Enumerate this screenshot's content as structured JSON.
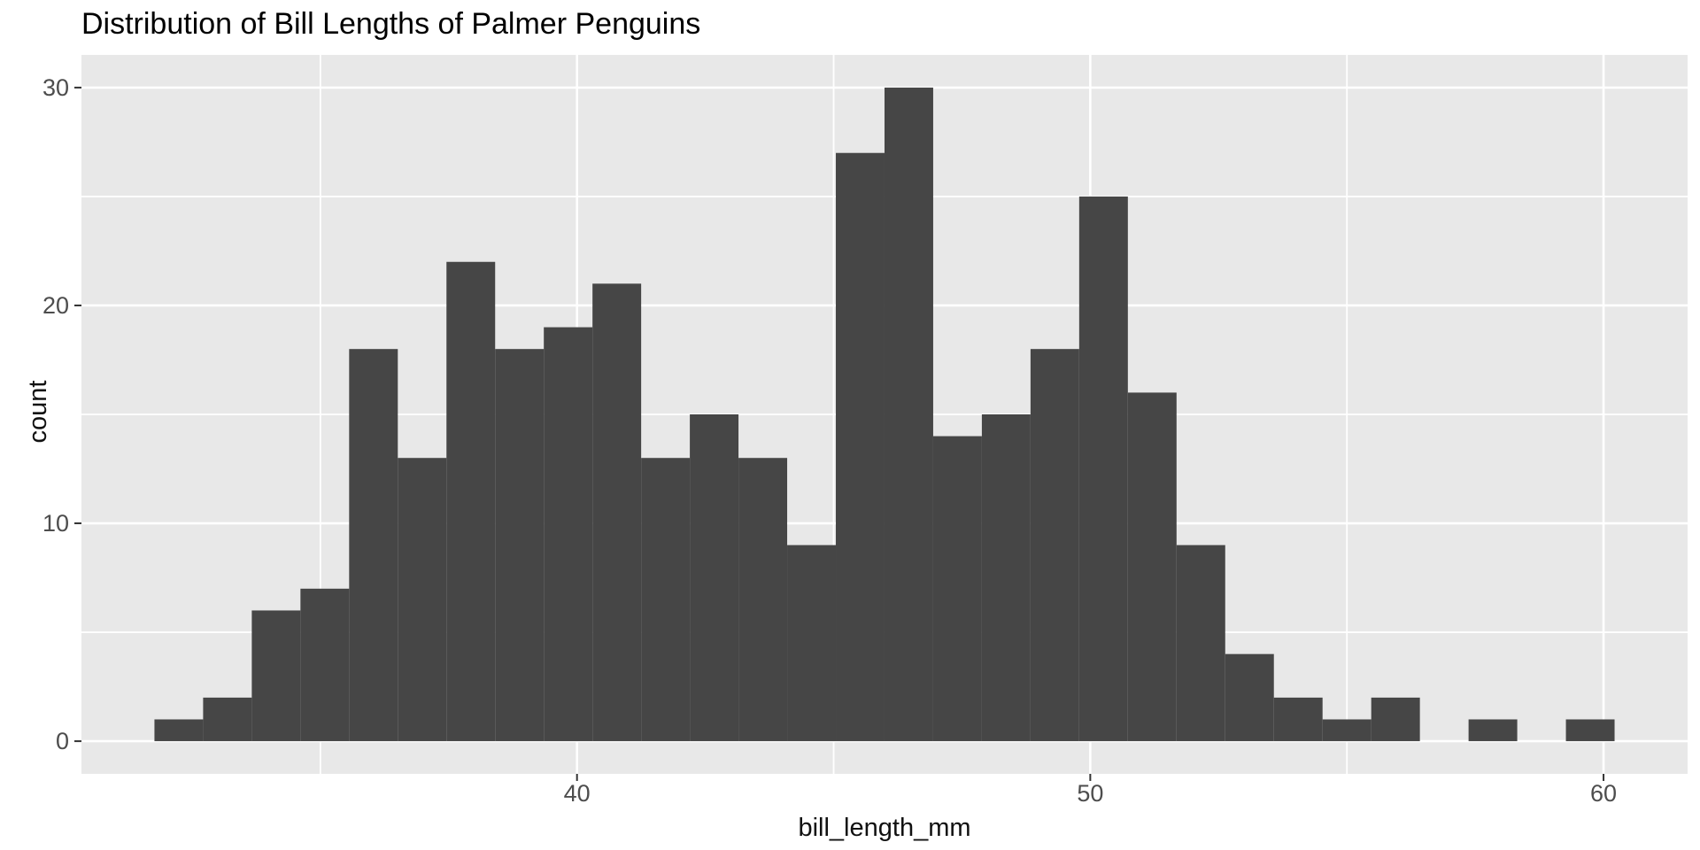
{
  "chart": {
    "title": "Distribution of Bill Lengths of Palmer Penguins",
    "x_axis_title": "bill_length_mm",
    "y_axis_title": "count",
    "x_tick_labels": [
      "40",
      "50",
      "60"
    ],
    "y_tick_labels": [
      "0",
      "10",
      "20",
      "30"
    ]
  },
  "chart_data": {
    "type": "bar",
    "subtype": "histogram",
    "title": "Distribution of Bill Lengths of Palmer Penguins",
    "xlabel": "bill_length_mm",
    "ylabel": "count",
    "bin_start": 31.767,
    "bin_width": 0.948276,
    "bin_centers": [
      32.24,
      33.19,
      34.14,
      35.09,
      36.03,
      36.98,
      37.93,
      38.88,
      39.83,
      40.78,
      41.72,
      42.67,
      43.62,
      44.57,
      45.52,
      46.47,
      47.41,
      48.36,
      49.31,
      50.26,
      51.21,
      52.15,
      53.1,
      54.05,
      55.0,
      55.95,
      56.9,
      57.84,
      58.79,
      59.74
    ],
    "counts": [
      1,
      2,
      6,
      7,
      18,
      13,
      22,
      18,
      19,
      21,
      13,
      15,
      13,
      9,
      27,
      30,
      14,
      15,
      18,
      25,
      16,
      9,
      4,
      2,
      1,
      2,
      0,
      1,
      0,
      1
    ],
    "total_count": 342,
    "x_major_breaks": [
      40,
      50,
      60
    ],
    "x_minor_breaks": [
      35,
      45,
      55
    ],
    "y_major_breaks": [
      0,
      10,
      20,
      30
    ],
    "y_minor_breaks": [
      5,
      15,
      25
    ],
    "x_domain": [
      30.345,
      61.638
    ],
    "y_domain": [
      -1.5,
      31.5
    ],
    "grid": true,
    "legend": "none",
    "colors": {
      "bar_fill": "#464646",
      "panel_background": "#e8e8e8",
      "gridline": "#ffffff",
      "axis_text": "#4d4d4d",
      "tick_mark": "#333333",
      "title_text": "#000000"
    }
  }
}
